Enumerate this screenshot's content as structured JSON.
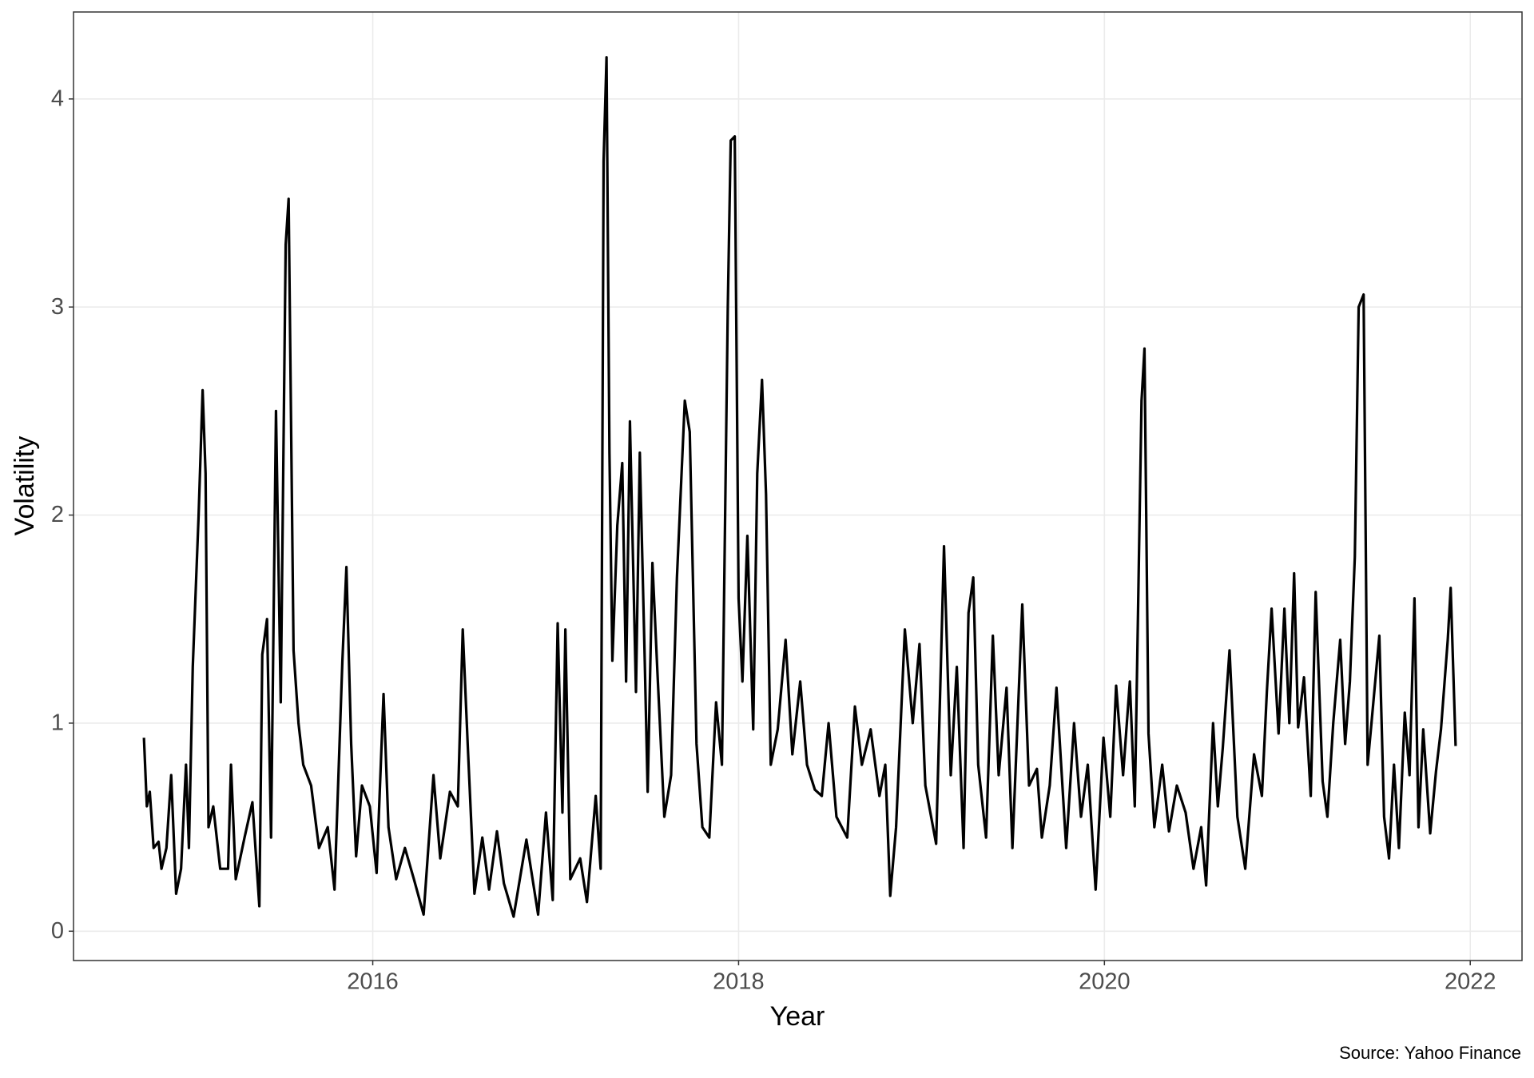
{
  "chart_data": {
    "type": "line",
    "xlabel": "Year",
    "ylabel": "Volatility",
    "caption": "Source: Yahoo Finance",
    "color": "#000000",
    "grid": true,
    "xlim": [
      2014.364,
      2022.283
    ],
    "xticks": [
      2016,
      2018,
      2020,
      2022
    ],
    "ylim": [
      -0.141,
      4.418
    ],
    "yticks": [
      0,
      1,
      2,
      3,
      4
    ],
    "x": [
      2014.749,
      2014.765,
      2014.781,
      2014.802,
      2014.829,
      2014.845,
      2014.872,
      2014.898,
      2014.925,
      2014.952,
      2014.979,
      2014.995,
      2015.016,
      2015.048,
      2015.07,
      2015.086,
      2015.102,
      2015.128,
      2015.166,
      2015.209,
      2015.225,
      2015.251,
      2015.299,
      2015.342,
      2015.38,
      2015.396,
      2015.422,
      2015.444,
      2015.471,
      2015.497,
      2015.524,
      2015.54,
      2015.567,
      2015.594,
      2015.62,
      2015.663,
      2015.706,
      2015.754,
      2015.791,
      2015.834,
      2015.856,
      2015.882,
      2015.909,
      2015.941,
      2015.984,
      2016.021,
      2016.059,
      2016.086,
      2016.128,
      2016.176,
      2016.225,
      2016.278,
      2016.332,
      2016.369,
      2016.422,
      2016.465,
      2016.492,
      2016.519,
      2016.556,
      2016.599,
      2016.636,
      2016.679,
      2016.717,
      2016.77,
      2016.84,
      2016.904,
      2016.947,
      2016.984,
      2017.011,
      2017.037,
      2017.053,
      2017.08,
      2017.134,
      2017.171,
      2017.219,
      2017.246,
      2017.262,
      2017.278,
      2017.294,
      2017.31,
      2017.337,
      2017.364,
      2017.385,
      2017.406,
      2017.439,
      2017.46,
      2017.487,
      2017.503,
      2017.529,
      2017.556,
      2017.594,
      2017.631,
      2017.663,
      2017.706,
      2017.733,
      2017.77,
      2017.802,
      2017.84,
      2017.877,
      2017.909,
      2017.941,
      2017.957,
      2017.979,
      2018.0,
      2018.021,
      2018.048,
      2018.08,
      2018.102,
      2018.128,
      2018.15,
      2018.176,
      2018.214,
      2018.257,
      2018.294,
      2018.337,
      2018.374,
      2018.417,
      2018.455,
      2018.492,
      2018.535,
      2018.594,
      2018.636,
      2018.674,
      2018.722,
      2018.77,
      2018.802,
      2018.829,
      2018.861,
      2018.909,
      2018.952,
      2018.989,
      2019.021,
      2019.08,
      2019.123,
      2019.16,
      2019.193,
      2019.23,
      2019.257,
      2019.283,
      2019.31,
      2019.353,
      2019.39,
      2019.422,
      2019.465,
      2019.497,
      2019.551,
      2019.588,
      2019.631,
      2019.658,
      2019.701,
      2019.738,
      2019.791,
      2019.834,
      2019.872,
      2019.909,
      2019.952,
      2019.995,
      2020.032,
      2020.064,
      2020.102,
      2020.139,
      2020.166,
      2020.203,
      2020.219,
      2020.241,
      2020.273,
      2020.316,
      2020.353,
      2020.396,
      2020.444,
      2020.487,
      2020.529,
      2020.556,
      2020.594,
      2020.62,
      2020.647,
      2020.684,
      2020.727,
      2020.77,
      2020.818,
      2020.861,
      2020.888,
      2020.914,
      2020.952,
      2020.984,
      2021.011,
      2021.037,
      2021.059,
      2021.091,
      2021.128,
      2021.155,
      2021.193,
      2021.219,
      2021.251,
      2021.289,
      2021.316,
      2021.342,
      2021.369,
      2021.39,
      2021.417,
      2021.439,
      2021.46,
      2021.503,
      2021.529,
      2021.556,
      2021.583,
      2021.61,
      2021.642,
      2021.668,
      2021.695,
      2021.717,
      2021.743,
      2021.781,
      2021.813,
      2021.84,
      2021.877,
      2021.893,
      2021.909,
      2021.92
    ],
    "values": [
      0.93,
      0.6,
      0.67,
      0.4,
      0.43,
      0.3,
      0.4,
      0.75,
      0.18,
      0.3,
      0.8,
      0.4,
      1.27,
      2.0,
      2.6,
      2.2,
      0.5,
      0.6,
      0.3,
      0.3,
      0.8,
      0.25,
      0.45,
      0.62,
      0.12,
      1.33,
      1.5,
      0.45,
      2.5,
      1.1,
      3.3,
      3.52,
      1.35,
      1.0,
      0.8,
      0.7,
      0.4,
      0.5,
      0.2,
      1.3,
      1.75,
      0.9,
      0.36,
      0.7,
      0.6,
      0.28,
      1.14,
      0.5,
      0.25,
      0.4,
      0.25,
      0.08,
      0.75,
      0.35,
      0.67,
      0.6,
      1.45,
      0.9,
      0.18,
      0.45,
      0.2,
      0.48,
      0.23,
      0.07,
      0.44,
      0.08,
      0.57,
      0.15,
      1.48,
      0.57,
      1.45,
      0.25,
      0.35,
      0.14,
      0.65,
      0.3,
      3.7,
      4.2,
      2.3,
      1.3,
      1.95,
      2.25,
      1.2,
      2.45,
      1.15,
      2.3,
      1.3,
      0.67,
      1.77,
      1.25,
      0.55,
      0.75,
      1.7,
      2.55,
      2.4,
      0.9,
      0.5,
      0.45,
      1.1,
      0.8,
      3.0,
      3.8,
      3.82,
      1.6,
      1.2,
      1.9,
      0.97,
      2.2,
      2.65,
      2.1,
      0.8,
      0.97,
      1.4,
      0.85,
      1.2,
      0.8,
      0.68,
      0.65,
      1.0,
      0.55,
      0.45,
      1.08,
      0.8,
      0.97,
      0.65,
      0.8,
      0.17,
      0.5,
      1.45,
      1.0,
      1.38,
      0.7,
      0.42,
      1.85,
      0.75,
      1.27,
      0.4,
      1.53,
      1.7,
      0.8,
      0.45,
      1.42,
      0.75,
      1.17,
      0.4,
      1.57,
      0.7,
      0.78,
      0.45,
      0.7,
      1.17,
      0.4,
      1.0,
      0.55,
      0.8,
      0.2,
      0.93,
      0.55,
      1.18,
      0.75,
      1.2,
      0.6,
      2.55,
      2.8,
      0.95,
      0.5,
      0.8,
      0.48,
      0.7,
      0.57,
      0.3,
      0.5,
      0.22,
      1.0,
      0.6,
      0.88,
      1.35,
      0.55,
      0.3,
      0.85,
      0.65,
      1.15,
      1.55,
      0.95,
      1.55,
      1.0,
      1.72,
      0.98,
      1.22,
      0.65,
      1.63,
      0.72,
      0.55,
      1.0,
      1.4,
      0.9,
      1.2,
      1.8,
      3.0,
      3.06,
      0.8,
      1.0,
      1.42,
      0.55,
      0.35,
      0.8,
      0.4,
      1.05,
      0.75,
      1.6,
      0.5,
      0.97,
      0.47,
      0.77,
      0.97,
      1.4,
      1.65,
      1.2,
      0.89
    ]
  }
}
